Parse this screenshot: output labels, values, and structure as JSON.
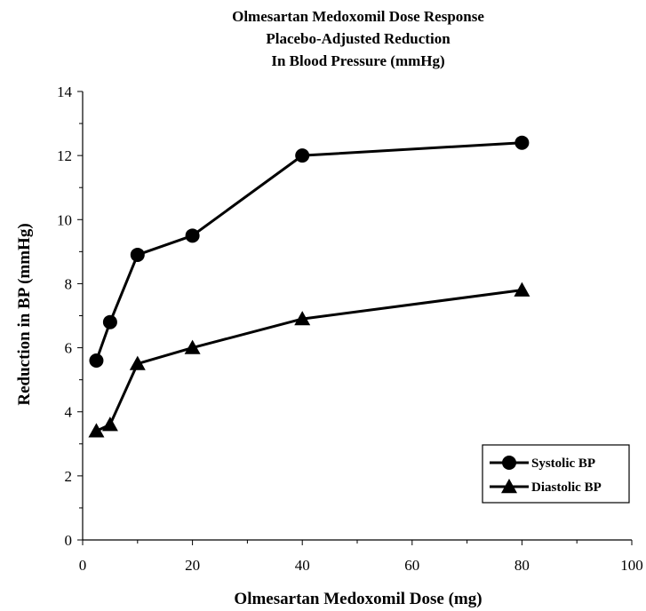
{
  "chart_data": {
    "type": "line",
    "title_lines": [
      "Olmesartan Medoxomil Dose Response",
      "Placebo-Adjusted Reduction",
      "In Blood Pressure (mmHg)"
    ],
    "xlabel": "Olmesartan Medoxomil Dose (mg)",
    "ylabel": "Reduction in BP (mmHg)",
    "xlim": [
      0,
      100
    ],
    "ylim": [
      0,
      14
    ],
    "xticks": [
      0,
      20,
      40,
      60,
      80,
      100
    ],
    "yticks": [
      0,
      2,
      4,
      6,
      8,
      10,
      12,
      14
    ],
    "grid": false,
    "legend_position": "bottom-right",
    "series": [
      {
        "name": "Systolic BP",
        "marker": "circle",
        "color": "#000000",
        "x": [
          2.5,
          5,
          10,
          20,
          40,
          80
        ],
        "y": [
          5.6,
          6.8,
          8.9,
          9.5,
          12.0,
          12.4
        ]
      },
      {
        "name": "Diastolic BP",
        "marker": "triangle",
        "color": "#000000",
        "x": [
          2.5,
          5,
          10,
          20,
          40,
          80
        ],
        "y": [
          3.4,
          3.6,
          5.5,
          6.0,
          6.9,
          7.8
        ]
      }
    ]
  }
}
